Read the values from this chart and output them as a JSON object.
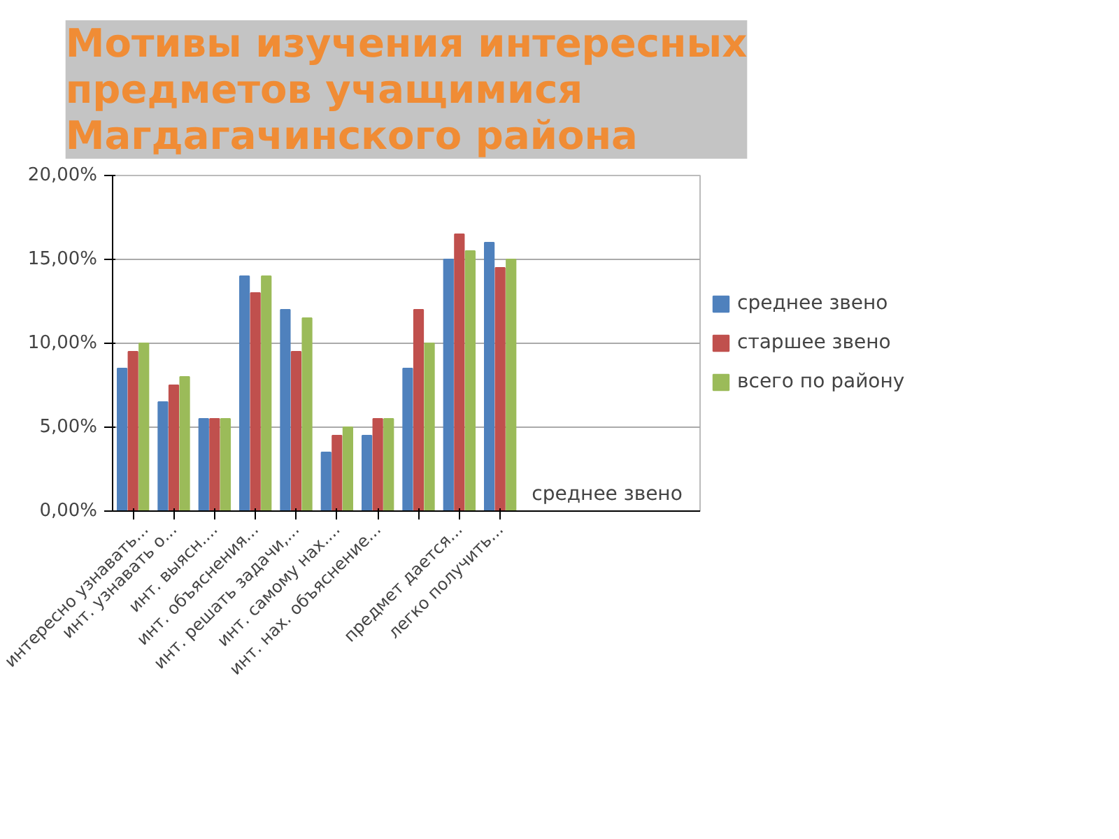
{
  "chart_data": {
    "type": "bar",
    "title": "Мотивы изучения интересных предметов учащимися Магдагачинского района",
    "categories": [
      "интересно узнавать...",
      "инт. узнавать о...",
      "инт. выясн....",
      "инт. объяснения...",
      "инт. решать задачи,...",
      "инт. самому нах....",
      "инт. нах. объяснение...",
      null,
      "предмет дается...",
      "легко получить..."
    ],
    "series": [
      {
        "name": "среднее звено",
        "color": "#4f81bd",
        "values": [
          8.5,
          6.5,
          5.5,
          14,
          12,
          3.5,
          4.5,
          8.5,
          15,
          16
        ]
      },
      {
        "name": "старшее звено",
        "color": "#c0504d",
        "values": [
          9.5,
          7.5,
          5.5,
          13,
          9.5,
          4.5,
          5.5,
          12,
          16.5,
          14.5
        ]
      },
      {
        "name": "всего по району",
        "color": "#9bbb59",
        "values": [
          10,
          8,
          5.5,
          14,
          11.5,
          5,
          5.5,
          10,
          15.5,
          15
        ]
      }
    ],
    "ylim": [
      0,
      20
    ],
    "yticks": [
      {
        "value": 0,
        "label": "0,00%"
      },
      {
        "value": 5,
        "label": "5,00%"
      },
      {
        "value": 10,
        "label": "10,00%"
      },
      {
        "value": 15,
        "label": "15,00%"
      },
      {
        "value": 20,
        "label": "20,00%"
      }
    ],
    "grid": "y",
    "legend": "right",
    "annotations": [
      "среднее звено"
    ]
  }
}
